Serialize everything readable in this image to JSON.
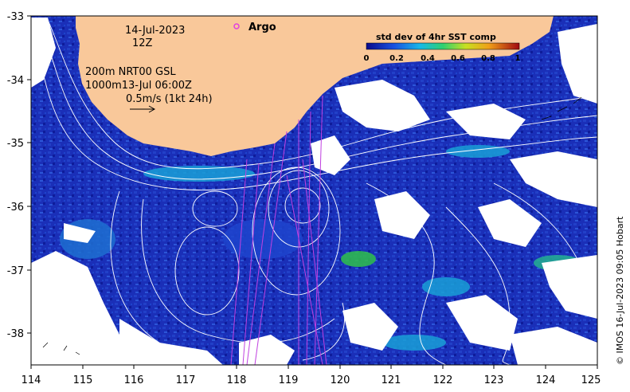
{
  "map": {
    "date": "14-Jul-2023",
    "hour": "12Z",
    "legend_lines": [
      "200m  NRT00 GSL",
      "1000m13-Jul 06:00Z",
      "0.5m/s (1kt 24h)"
    ],
    "argo_label": "Argo",
    "colorbar": {
      "title": "std dev of 4hr SST comp",
      "ticks": [
        "0",
        "0.2",
        "0.4",
        "0.6",
        "0.8",
        "1"
      ],
      "range": [
        0,
        1
      ]
    },
    "credit": "© IMOS 16-Jul-2023 09:05 Hobart",
    "lon_labels": [
      "114",
      "115",
      "116",
      "117",
      "118",
      "119",
      "120",
      "121",
      "122",
      "123",
      "124",
      "125"
    ],
    "lat_labels": [
      "-33",
      "-34",
      "-35",
      "-36",
      "-37",
      "-38"
    ],
    "lon_range": [
      114,
      125
    ],
    "lat_range": [
      -38.5,
      -33
    ],
    "colors": {
      "land": "#f9c89a",
      "cloud": "#ffffff",
      "sst_low": "#1818a8",
      "sst_mid": "#1a9fd6",
      "sst_high": "#2fbf4a",
      "argo": "#e040e0",
      "track": "#c040e0",
      "contour": "#ffffff"
    }
  }
}
